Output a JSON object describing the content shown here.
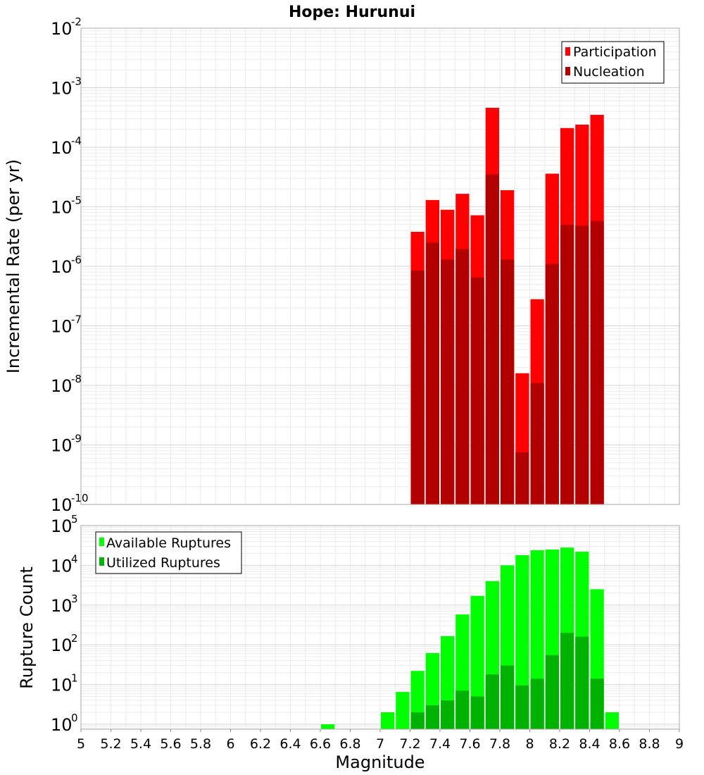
{
  "chart_data": [
    {
      "type": "bar",
      "title": "Hope: Hurunui",
      "ylabel": "Incremental Rate (per yr)",
      "xlabel": "",
      "y_scale": "log",
      "ylim": [
        1e-10,
        0.01
      ],
      "xlim": [
        5,
        9
      ],
      "y_tick_labels": [
        {
          "base": "10",
          "exp": "-10"
        },
        {
          "base": "10",
          "exp": "-9"
        },
        {
          "base": "10",
          "exp": "-8"
        },
        {
          "base": "10",
          "exp": "-7"
        },
        {
          "base": "10",
          "exp": "-6"
        },
        {
          "base": "10",
          "exp": "-5"
        },
        {
          "base": "10",
          "exp": "-4"
        },
        {
          "base": "10",
          "exp": "-3"
        },
        {
          "base": "10",
          "exp": "-2"
        }
      ],
      "grid": true,
      "legend_position": "top-right",
      "bar_width": 0.1,
      "x": [
        7.25,
        7.35,
        7.45,
        7.55,
        7.65,
        7.75,
        7.85,
        7.95,
        8.05,
        8.15,
        8.25,
        8.35,
        8.45
      ],
      "series": [
        {
          "name": "Participation",
          "color": "#ff0000",
          "values": [
            3.8e-06,
            1.3e-05,
            8.9e-06,
            1.65e-05,
            7.2e-06,
            0.00046,
            1.9e-05,
            1.6e-08,
            2.8e-07,
            3.6e-05,
            0.00021,
            0.00024,
            0.00035
          ]
        },
        {
          "name": "Nucleation",
          "color": "#b20000",
          "values": [
            8.5e-07,
            2.5e-06,
            1.3e-06,
            1.95e-06,
            6.5e-07,
            3.5e-05,
            1.3e-06,
            7.5e-10,
            1.1e-08,
            1.1e-06,
            5e-06,
            4.8e-06,
            5.8e-06
          ]
        }
      ]
    },
    {
      "type": "bar",
      "title": "",
      "ylabel": "Rupture Count",
      "xlabel": "Magnitude",
      "y_scale": "log",
      "ylim": [
        0.75,
        100000
      ],
      "xlim": [
        5,
        9
      ],
      "x_tick_labels": [
        "5",
        "5.2",
        "5.4",
        "5.6",
        "5.8",
        "6",
        "6.2",
        "6.4",
        "6.6",
        "6.8",
        "7",
        "7.2",
        "7.4",
        "7.6",
        "7.8",
        "8",
        "8.2",
        "8.4",
        "8.6",
        "8.8",
        "9"
      ],
      "y_tick_labels": [
        {
          "base": "10",
          "exp": "0"
        },
        {
          "base": "10",
          "exp": "1"
        },
        {
          "base": "10",
          "exp": "2"
        },
        {
          "base": "10",
          "exp": "3"
        },
        {
          "base": "10",
          "exp": "4"
        },
        {
          "base": "10",
          "exp": "5"
        }
      ],
      "grid": true,
      "legend_position": "top-left",
      "bar_width": 0.1,
      "x": [
        6.65,
        7.05,
        7.15,
        7.25,
        7.35,
        7.45,
        7.55,
        7.65,
        7.75,
        7.85,
        7.95,
        8.05,
        8.15,
        8.25,
        8.35,
        8.45,
        8.55
      ],
      "series": [
        {
          "name": "Available Ruptures",
          "color": "#00ff00",
          "values": [
            1,
            2,
            6.5,
            22,
            62,
            165,
            580,
            1700,
            4000,
            10000,
            18000,
            24000,
            25000,
            28000,
            22000,
            2500,
            2
          ]
        },
        {
          "name": "Utilized Ruptures",
          "color": "#00b200",
          "values": [
            null,
            null,
            null,
            2,
            3,
            4,
            7,
            5,
            18,
            30,
            9.5,
            14,
            55,
            200,
            160,
            14,
            null
          ]
        }
      ]
    }
  ]
}
